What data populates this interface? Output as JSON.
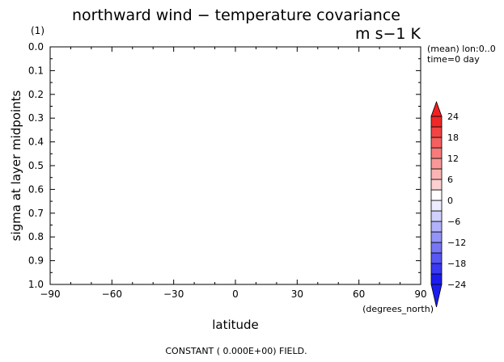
{
  "chart_data": {
    "type": "heatmap",
    "title": "northward wind − temperature covariance",
    "units": "m s−1 K",
    "panel_label": "(1)",
    "xlabel": "latitude",
    "x_units": "(degrees_north)",
    "ylabel": "sigma at layer midpoints",
    "xlim": [
      -90,
      90
    ],
    "ylim": [
      1.0,
      0.0
    ],
    "x_ticks": [
      "−90",
      "−60",
      "−30",
      "0",
      "30",
      "60",
      "90"
    ],
    "y_ticks": [
      "0.0",
      "0.1",
      "0.2",
      "0.3",
      "0.4",
      "0.5",
      "0.6",
      "0.7",
      "0.8",
      "0.9",
      "1.0"
    ],
    "info_lines": [
      "(mean) lon:0..0",
      "time=0 day"
    ],
    "footer": "CONSTANT ( 0.000E+00) FIELD.",
    "field_value": 0,
    "colorbar": {
      "labels": [
        "24",
        "18",
        "12",
        "6",
        "0",
        "−6",
        "−12",
        "−18",
        "−24"
      ],
      "label_values": [
        24,
        18,
        12,
        6,
        0,
        -6,
        -12,
        -18,
        -24
      ],
      "levels": [
        -24,
        -21,
        -18,
        -15,
        -12,
        -9,
        -6,
        -3,
        0,
        3,
        6,
        9,
        12,
        15,
        18,
        21,
        24
      ],
      "extend": "both",
      "top_arrow_color": "#f02020",
      "bottom_arrow_color": "#1c1cf0",
      "colors": [
        "#1c1cf0",
        "#3a3af2",
        "#5858f4",
        "#7676f6",
        "#9494f8",
        "#b2b2fa",
        "#d0d0fc",
        "#ececfe",
        "#ffffff",
        "#fcd0d0",
        "#fab4b4",
        "#f89898",
        "#f67c7c",
        "#f46060",
        "#f24444",
        "#f02828"
      ]
    }
  }
}
